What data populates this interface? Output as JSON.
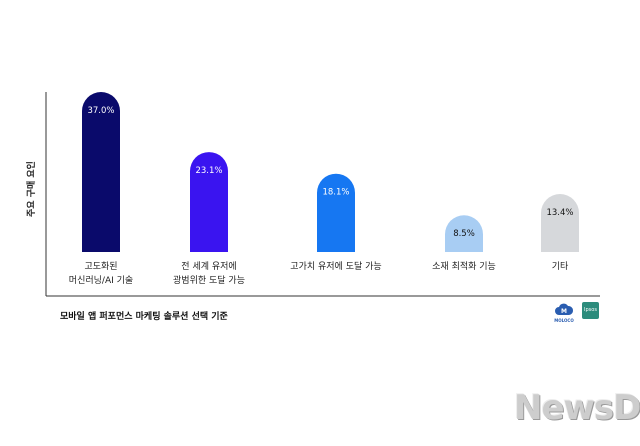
{
  "chart_data": {
    "type": "bar",
    "categories": [
      "고도화된\n머신러닝/AI 기술",
      "전 세계 유저에\n광범위한 도달 가능",
      "고가치 유저에 도달 가능",
      "소재 최적화 기능",
      "기타"
    ],
    "values": [
      37.0,
      23.1,
      18.1,
      8.5,
      13.4
    ],
    "value_labels": [
      "37.0%",
      "23.1%",
      "18.1%",
      "8.5%",
      "13.4%"
    ],
    "colors": [
      "#0a0a6b",
      "#3a14f0",
      "#1677f2",
      "#a8cdf3",
      "#d6d8db"
    ],
    "label_colors": [
      "#ffffff",
      "#ffffff",
      "#ffffff",
      "#111111",
      "#111111"
    ],
    "ylabel": "주요 구매 요인",
    "ylim": [
      0,
      37.0
    ],
    "grid": false,
    "legend": "none"
  },
  "footnote": "모바일 앱 퍼포먼스 마케팅 솔루션 선택 기준",
  "logos": {
    "moloco": "MOLOCO",
    "ipsos": "Ipsos"
  },
  "watermark": "NewsDa"
}
